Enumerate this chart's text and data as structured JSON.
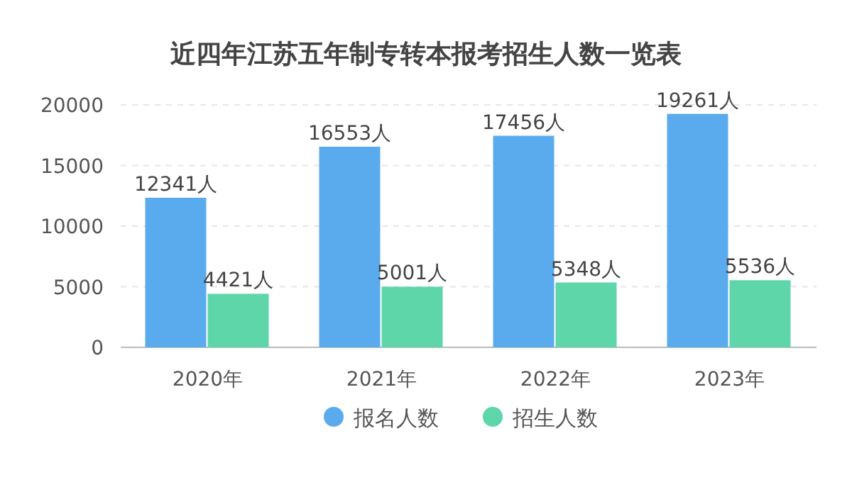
{
  "chart_data": {
    "type": "bar",
    "title": "近四年江苏五年制专转本报考招生人数一览表",
    "categories": [
      "2020年",
      "2021年",
      "2022年",
      "2023年"
    ],
    "series": [
      {
        "name": "报名人数",
        "color": "#5aabee",
        "values": [
          12341,
          16553,
          17456,
          19261
        ],
        "value_labels": [
          "12341人",
          "16553人",
          "17456人",
          "19261人"
        ]
      },
      {
        "name": "招生人数",
        "color": "#5fd6aa",
        "values": [
          4421,
          5001,
          5348,
          5536
        ],
        "value_labels": [
          "4421人",
          "5001人",
          "5348人",
          "5536人"
        ]
      }
    ],
    "ylim": [
      0,
      20000
    ],
    "yticks": [
      0,
      5000,
      10000,
      15000,
      20000
    ],
    "grid": "y",
    "legend": "bottom"
  }
}
